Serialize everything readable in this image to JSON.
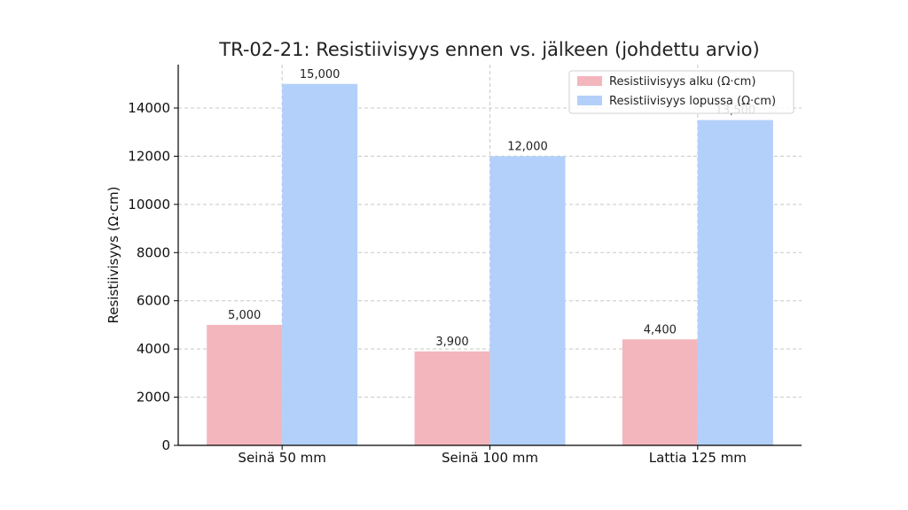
{
  "chart_data": {
    "type": "bar",
    "title": "TR-02-21: Resistiivisyys ennen vs. jälkeen (johdettu arvio)",
    "xlabel": "",
    "ylabel": "Resistiivisyys (Ω·cm)",
    "categories": [
      "Seinä 50 mm",
      "Seinä 100 mm",
      "Lattia 125 mm"
    ],
    "series": [
      {
        "name": "Resistiivisyys alku (Ω·cm)",
        "color": "#f4b6bd",
        "values": [
          5000,
          3900,
          4400
        ],
        "labels": [
          "5,000",
          "3,900",
          "4,400"
        ]
      },
      {
        "name": "Resistiivisyys lopussa (Ω·cm)",
        "color": "#b3d0fa",
        "values": [
          15000,
          12000,
          13500
        ],
        "labels": [
          "15,000",
          "12,000",
          "13,500"
        ]
      }
    ],
    "ylim": [
      0,
      15800
    ],
    "yticks": [
      0,
      2000,
      4000,
      6000,
      8000,
      10000,
      12000,
      14000
    ],
    "ytick_labels": [
      "0",
      "2000",
      "4000",
      "6000",
      "8000",
      "10000",
      "12000",
      "14000"
    ],
    "grid": true,
    "legend_position": "top-right"
  }
}
